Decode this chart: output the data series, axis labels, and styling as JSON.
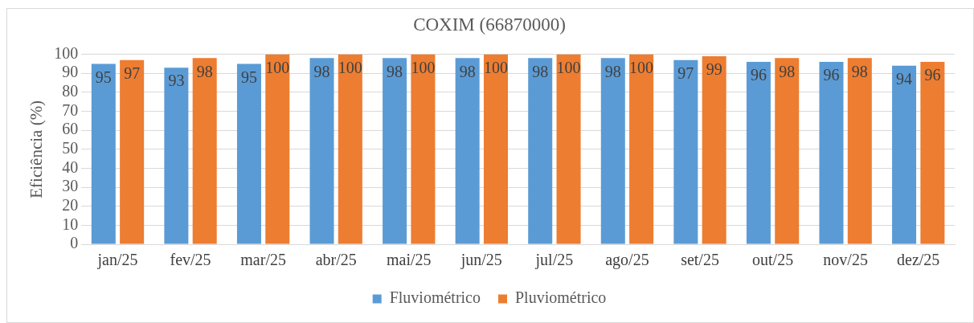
{
  "chart_data": {
    "type": "bar",
    "title": "COXIM (66870000)",
    "ylabel": "Eficiência (%)",
    "categories": [
      "jan/25",
      "fev/25",
      "mar/25",
      "abr/25",
      "mai/25",
      "jun/25",
      "jul/25",
      "ago/25",
      "set/25",
      "out/25",
      "nov/25",
      "dez/25"
    ],
    "series": [
      {
        "name": "Fluviométrico",
        "color": "#5b9bd5",
        "values": [
          95,
          93,
          95,
          98,
          98,
          98,
          98,
          98,
          97,
          96,
          96,
          94
        ]
      },
      {
        "name": "Pluviométrico",
        "color": "#ed7d31",
        "values": [
          97,
          98,
          100,
          100,
          100,
          100,
          100,
          100,
          99,
          98,
          98,
          96
        ]
      }
    ],
    "ylim": [
      0,
      100
    ],
    "yticks": [
      0,
      10,
      20,
      30,
      40,
      50,
      60,
      70,
      80,
      90,
      100
    ],
    "grid": "y",
    "legend": "bottom",
    "data_labels": true
  }
}
